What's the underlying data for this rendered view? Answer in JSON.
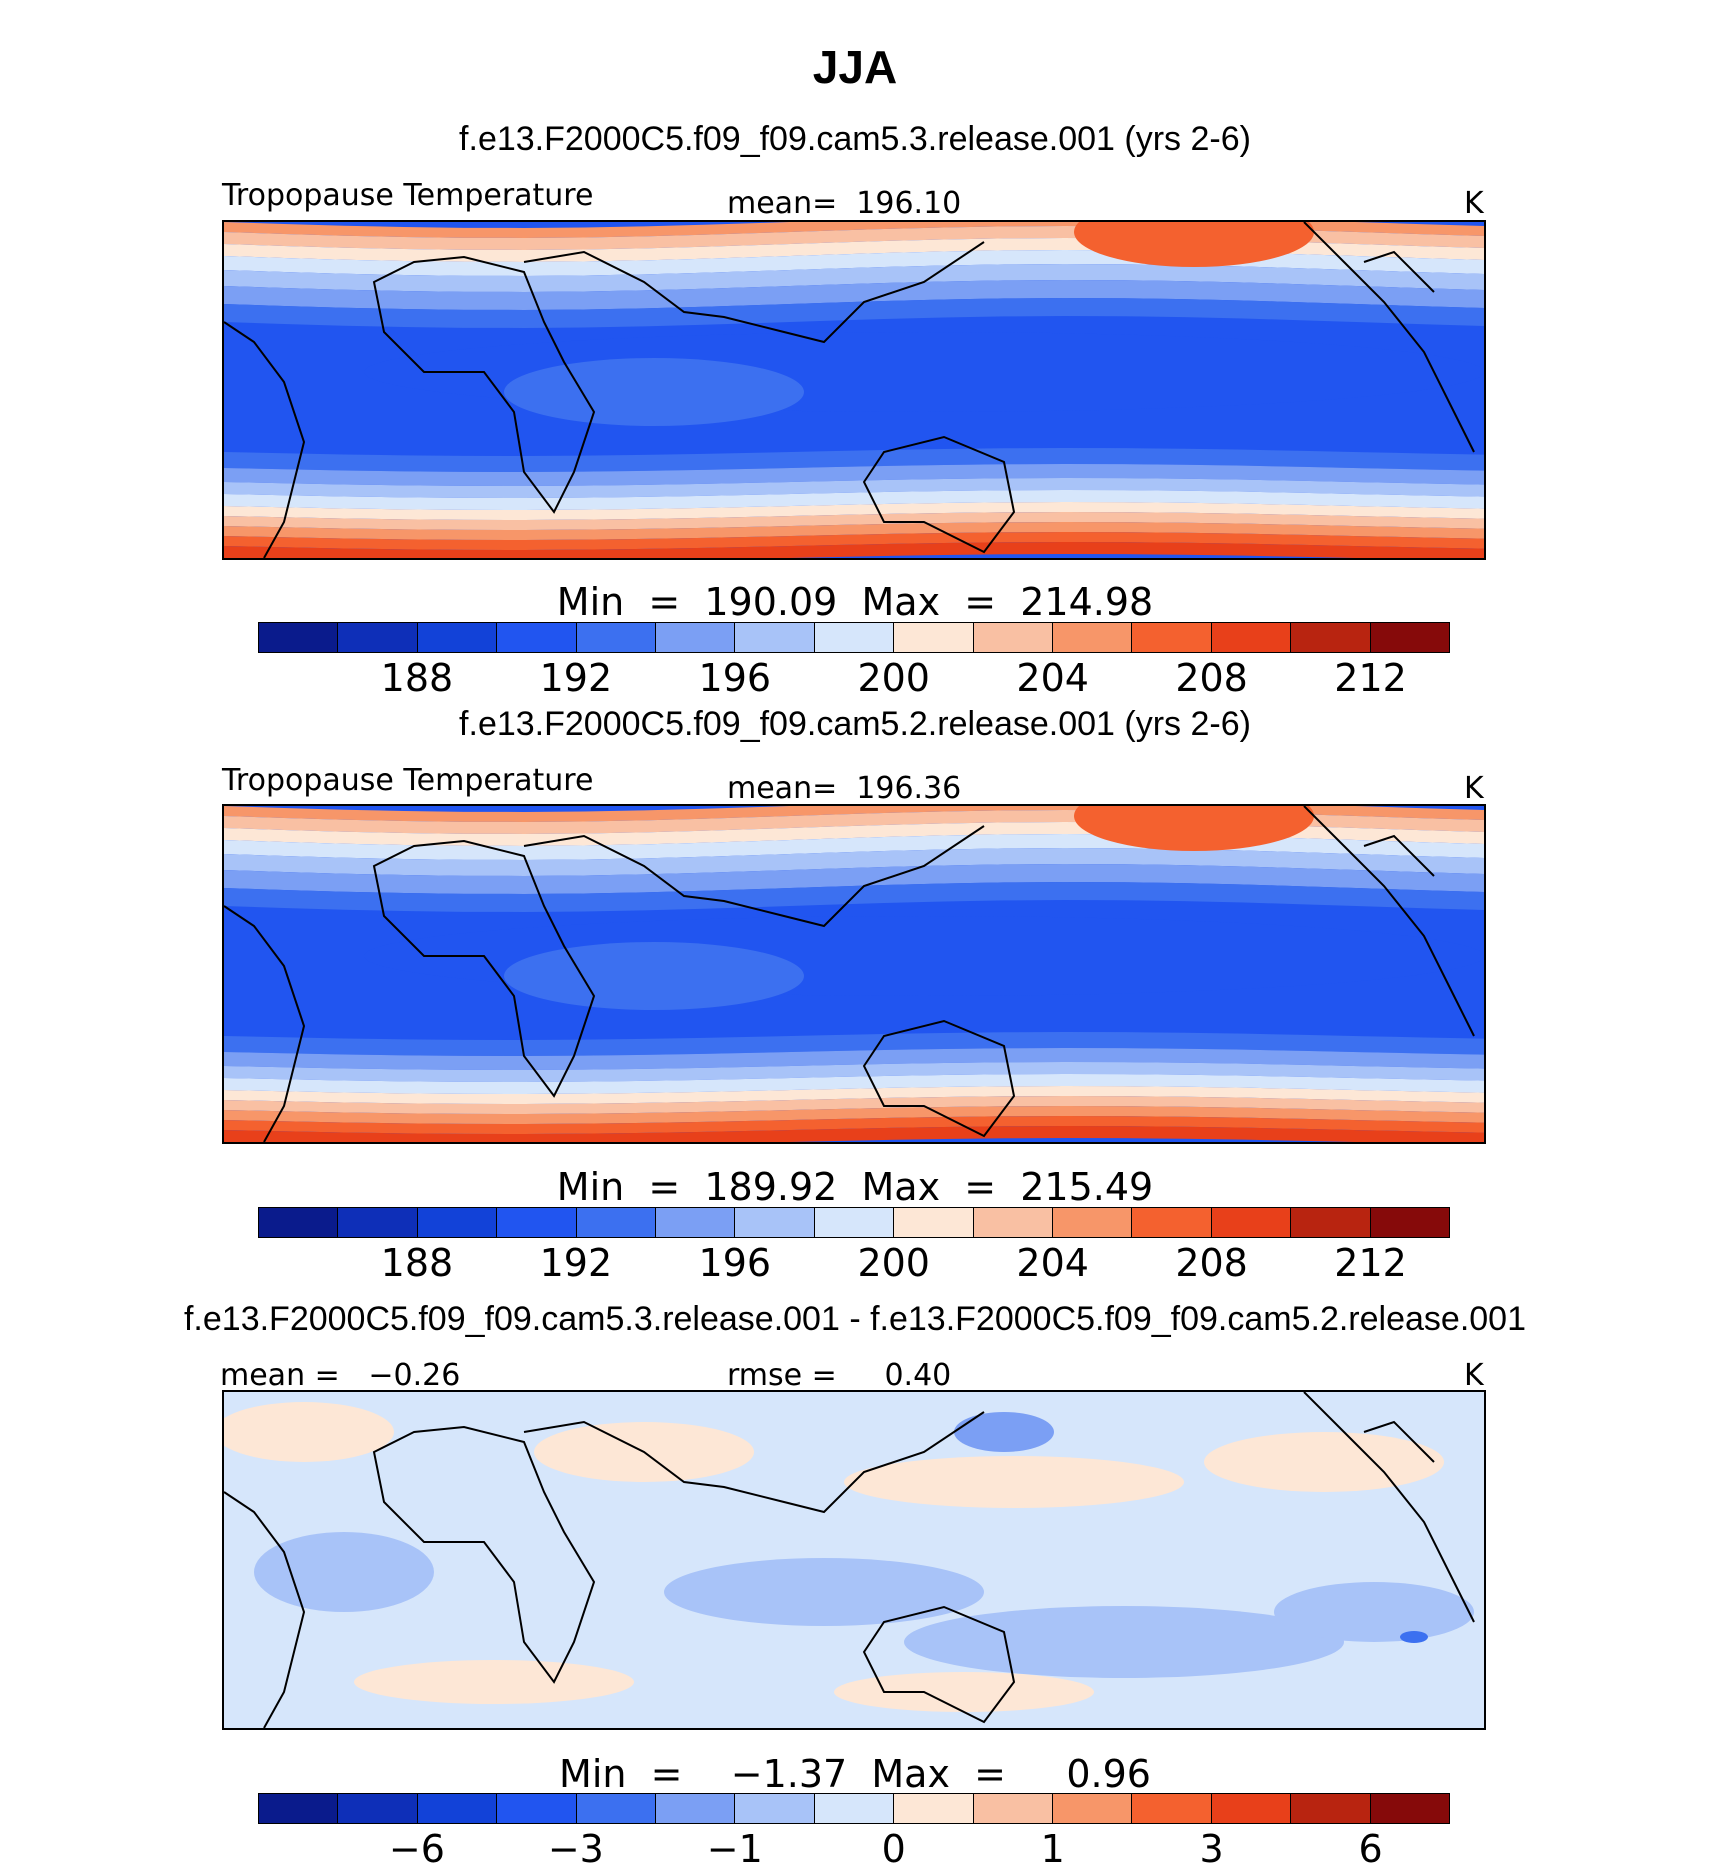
{
  "main_title": "JJA",
  "units": "K",
  "colors": {
    "abs": [
      "#0a1b8c",
      "#0e2fb8",
      "#1242d8",
      "#2155f0",
      "#3c70f0",
      "#7b9ff4",
      "#a8c3f8",
      "#d6e6fb",
      "#fde7d6",
      "#f9c0a3",
      "#f79669",
      "#f4612f",
      "#e8401a",
      "#b82410",
      "#860a0a"
    ],
    "diff": [
      "#0a1b8c",
      "#0e2fb8",
      "#1242d8",
      "#2155f0",
      "#3c70f0",
      "#7b9ff4",
      "#a8c3f8",
      "#d6e6fb",
      "#fde7d6",
      "#f9c0a3",
      "#f79669",
      "#f4612f",
      "#e8401a",
      "#b82410",
      "#860a0a"
    ]
  },
  "chart_data": [
    {
      "type": "heatmap",
      "title": "f.e13.F2000C5.f09_f09.cam5.3.release.001 (yrs 2-6)",
      "variable": "Tropopause Temperature",
      "mean_label": "mean=  196.10",
      "units": "K",
      "min": 190.09,
      "max": 214.98,
      "stat_label": "Min  =  190.09  Max  =  214.98",
      "colorbar_ticks": [
        "188",
        "192",
        "196",
        "200",
        "204",
        "208",
        "212"
      ],
      "colorbar_levels": [
        186,
        188,
        190,
        192,
        194,
        196,
        198,
        200,
        202,
        204,
        206,
        208,
        210,
        212,
        214
      ]
    },
    {
      "type": "heatmap",
      "title": "f.e13.F2000C5.f09_f09.cam5.2.release.001 (yrs 2-6)",
      "variable": "Tropopause Temperature",
      "mean_label": "mean=  196.36",
      "units": "K",
      "min": 189.92,
      "max": 215.49,
      "stat_label": "Min  =  189.92  Max  =  215.49",
      "colorbar_ticks": [
        "188",
        "192",
        "196",
        "200",
        "204",
        "208",
        "212"
      ],
      "colorbar_levels": [
        186,
        188,
        190,
        192,
        194,
        196,
        198,
        200,
        202,
        204,
        206,
        208,
        210,
        212,
        214
      ]
    },
    {
      "type": "heatmap",
      "title": "f.e13.F2000C5.f09_f09.cam5.3.release.001 - f.e13.F2000C5.f09_f09.cam5.2.release.001",
      "mean_label": "mean =   −0.26",
      "rmse_label": "rmse =     0.40",
      "units": "K",
      "min": -1.37,
      "max": 0.96,
      "stat_label": "Min  =    −1.37  Max  =     0.96",
      "colorbar_ticks": [
        "−6",
        "−3",
        "−1",
        "0",
        "1",
        "3",
        "6"
      ]
    }
  ]
}
